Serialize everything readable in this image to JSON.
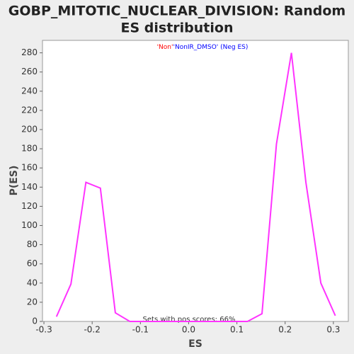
{
  "chart_data": {
    "type": "line",
    "title": "GOBP_MITOTIC_NUCLEAR_DIVISION: Random ES distribution",
    "title_lines": [
      "GOBP_MITOTIC_NUCLEAR_DIVISION: Random",
      "ES distribution"
    ],
    "x_label": "ES",
    "y_label": "P(ES)",
    "legend_parts": [
      {
        "text": "'Non'",
        "color": "#ff0000"
      },
      {
        "text": "'NonIR_DMSO'",
        "color": "#0000ff"
      },
      {
        "text": " (Neg ES)",
        "color": "#0000ff"
      }
    ],
    "annotation": "Sets with pos scores: 66%",
    "x": [
      -0.274,
      -0.244,
      -0.213,
      -0.183,
      -0.152,
      -0.122,
      -0.091,
      -0.061,
      -0.03,
      0.0,
      0.03,
      0.061,
      0.091,
      0.122,
      0.152,
      0.182,
      0.213,
      0.243,
      0.274,
      0.304
    ],
    "series": [
      {
        "name": "Random ES",
        "color": "#ff33ff",
        "values": [
          5,
          39,
          145,
          139,
          9,
          0,
          0,
          0,
          0,
          0,
          0,
          0,
          0,
          0,
          8,
          185,
          280,
          145,
          40,
          6
        ]
      }
    ],
    "xlim": [
      -0.303,
      0.331
    ],
    "ylim": [
      0,
      293
    ],
    "xticks": [
      -0.3,
      -0.2,
      -0.1,
      {
        "value": 0,
        "label": "0.0"
      },
      0.1,
      0.2,
      0.3
    ],
    "yticks": [
      0,
      20,
      40,
      60,
      80,
      100,
      120,
      140,
      160,
      180,
      200,
      220,
      240,
      260,
      280
    ]
  }
}
